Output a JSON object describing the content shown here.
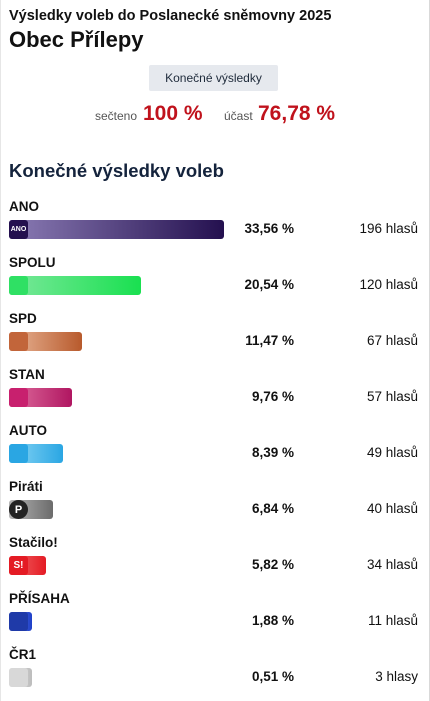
{
  "header": {
    "supertitle": "Výsledky voleb do Poslanecké sněmovny 2025",
    "title": "Obec Přílepy",
    "tab_label": "Konečné výsledky"
  },
  "stats": {
    "counted_label": "sečteno",
    "counted_value": "100 %",
    "turnout_label": "účast",
    "turnout_value": "76,78 %"
  },
  "section_title": "Konečné výsledky voleb",
  "parties": [
    {
      "name": "ANO",
      "percent": "33,56 %",
      "votes": "196 hlasů",
      "share": 33.56,
      "logo_text": "ANO",
      "logo_icon": "ano-logo-icon",
      "colors": [
        "#8b7cb5",
        "#24104f"
      ],
      "logo_bg": "#24104f"
    },
    {
      "name": "SPOLU",
      "percent": "20,54 %",
      "votes": "120 hlasů",
      "share": 20.54,
      "logo_text": "",
      "logo_icon": "spolu-logo-icon",
      "colors": [
        "#7be89b",
        "#19e050"
      ],
      "logo_bg": "#2fe064"
    },
    {
      "name": "SPD",
      "percent": "11,47 %",
      "votes": "67 hlasů",
      "share": 11.47,
      "logo_text": "",
      "logo_icon": "spd-logo-icon",
      "colors": [
        "#e9b698",
        "#b85a2c"
      ],
      "logo_bg": "#c2653a"
    },
    {
      "name": "STAN",
      "percent": "9,76 %",
      "votes": "57 hlasů",
      "share": 9.76,
      "logo_text": "",
      "logo_icon": "stan-logo-icon",
      "colors": [
        "#e06f9f",
        "#b01661"
      ],
      "logo_bg": "#c8206e"
    },
    {
      "name": "AUTO",
      "percent": "8,39 %",
      "votes": "49 hlasů",
      "share": 8.39,
      "logo_text": "",
      "logo_icon": "auto-logo-icon",
      "colors": [
        "#8ad6f5",
        "#2aa6e3"
      ],
      "logo_bg": "#2aa6e3"
    },
    {
      "name": "Piráti",
      "percent": "6,84 %",
      "votes": "40 hlasů",
      "share": 6.84,
      "logo_text": "P",
      "logo_icon": "pirati-logo-icon",
      "colors": [
        "#b5b5b5",
        "#6b6b6b"
      ],
      "logo_bg": "#222222"
    },
    {
      "name": "Stačilo!",
      "percent": "5,82 %",
      "votes": "34 hlasů",
      "share": 5.82,
      "logo_text": "S!",
      "logo_icon": "stacilo-logo-icon",
      "colors": [
        "#f26a6a",
        "#e41b24"
      ],
      "logo_bg": "#e41b24"
    },
    {
      "name": "PŘÍSAHA",
      "percent": "1,88 %",
      "votes": "11 hlasů",
      "share": 1.88,
      "logo_text": "",
      "logo_icon": "prisaha-logo-icon",
      "colors": [
        "#6f8ae8",
        "#1e3fc8"
      ],
      "logo_bg": "#1f3aa8"
    },
    {
      "name": "ČR1",
      "percent": "0,51 %",
      "votes": "3 hlasy",
      "share": 0.51,
      "logo_text": "",
      "logo_icon": "cr1-logo-icon",
      "colors": [
        "#e2e2e2",
        "#bdbdbd"
      ],
      "logo_bg": "#d8d8d8"
    }
  ]
}
